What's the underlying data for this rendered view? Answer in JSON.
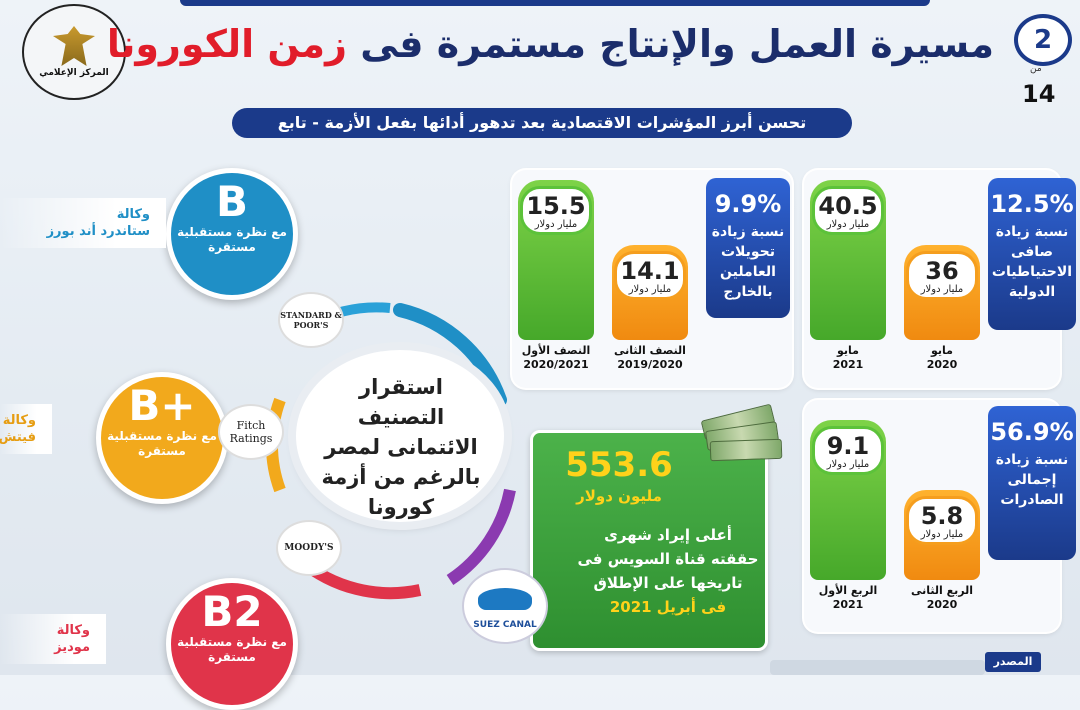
{
  "header": {
    "title_part1": "مسيرة العمل والإنتاج مستمرة فى",
    "title_part2": "زمن الكورونا",
    "page_number": "2",
    "page_of": "من",
    "page_total": "14",
    "logo_text": "المركز الإعلامي",
    "subtitle": "تحسن أبرز المؤشرات الاقتصادية بعد تدهور أدائها بفعل الأزمة - تابع"
  },
  "reserves": {
    "percent": "12.5%",
    "desc": "نسبة زيادة صافى الاحتياطيات الدولية",
    "bars": [
      {
        "value": "40.5",
        "unit": "مليار دولار",
        "label1": "مايو",
        "label2": "2021",
        "color": "#46a82a"
      },
      {
        "value": "36",
        "unit": "مليار دولار",
        "label1": "مايو",
        "label2": "2020",
        "color": "#f08a10"
      }
    ]
  },
  "remittances": {
    "percent": "9.9%",
    "desc": "نسبة زيادة تحويلات العاملين بالخارج",
    "bars": [
      {
        "value": "15.5",
        "unit": "مليار دولار",
        "label1": "النصف الأول",
        "label2": "2020/2021",
        "color": "#46a82a"
      },
      {
        "value": "14.1",
        "unit": "مليار دولار",
        "label1": "النصف الثانى",
        "label2": "2019/2020",
        "color": "#f08a10"
      }
    ]
  },
  "exports": {
    "percent": "56.9%",
    "desc": "نسبة زيادة إجمالى الصادرات",
    "bars": [
      {
        "value": "9.1",
        "unit": "مليار دولار",
        "label1": "الربع الأول",
        "label2": "2021",
        "color": "#46a82a"
      },
      {
        "value": "5.8",
        "unit": "مليار دولار",
        "label1": "الربع الثانى",
        "label2": "2020",
        "color": "#f08a10"
      }
    ]
  },
  "suez": {
    "value": "553.6",
    "unit": "مليون دولار",
    "line1": "أعلى إيراد شهرى",
    "line2": "حققته قناة السويس فى",
    "line3": "تاريخها على الإطلاق",
    "line4": "فى أبريل 2021",
    "logo_text": "SUEZ CANAL"
  },
  "ratings": {
    "hub_text": "استقرار التصنيف الائتمانى لمصر بالرغم من أزمة كورونا",
    "agencies": [
      {
        "grade": "B",
        "outlook": "مع نظرة مستقبلية مستقرة",
        "agency_label": "وكالة",
        "agency_name": "ستاندرد أند بورز",
        "logo": "STANDARD & POOR'S",
        "color": "#1f8fc6"
      },
      {
        "grade": "B+",
        "outlook": "مع نظرة مستقبلية مستقرة",
        "agency_label": "وكالة",
        "agency_name": "فيتش",
        "logo": "Fitch Ratings",
        "color": "#f2a91c"
      },
      {
        "grade": "B2",
        "outlook": "مع نظرة مستقبلية مستقرة",
        "agency_label": "وكالة",
        "agency_name": "موديز",
        "logo": "MOODY'S",
        "color": "#e0344a"
      }
    ]
  },
  "footer": {
    "source_label": "المصدر"
  }
}
